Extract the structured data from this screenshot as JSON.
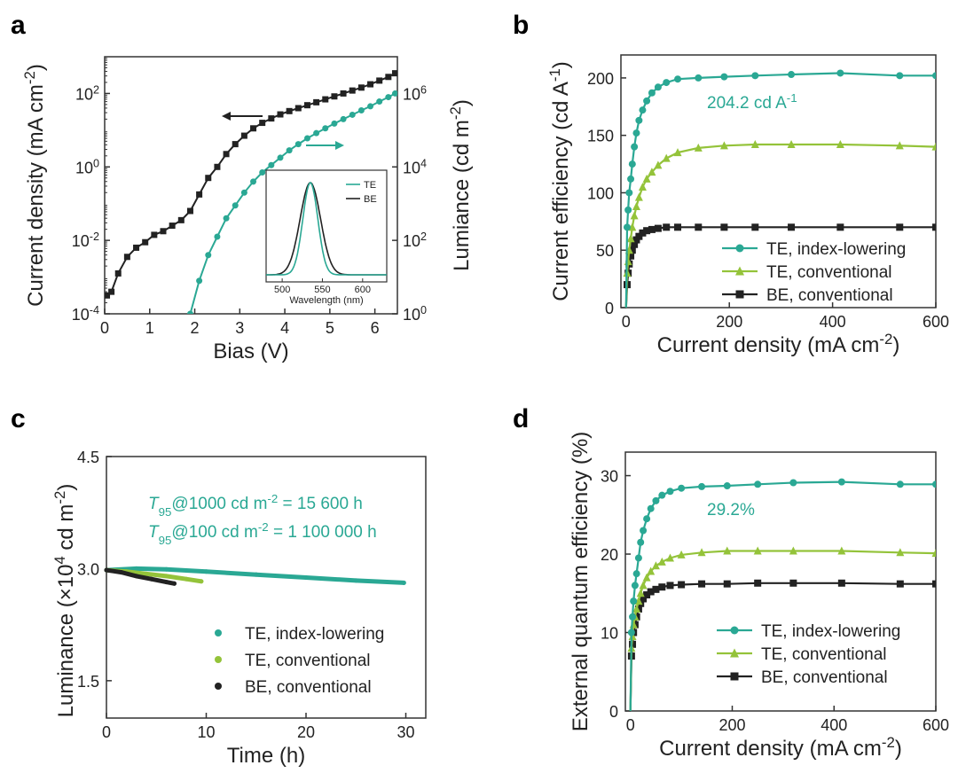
{
  "colors": {
    "teal": "#2aa894",
    "green": "#94c33a",
    "black": "#222222"
  },
  "chart_data": [
    {
      "panel": "a",
      "type": "line",
      "xlabel": "Bias (V)",
      "ylabel": "Current density (mA cm",
      "ylabel_sup": "-2",
      "ylabel_end": ")",
      "y2label": "Lumiance (cd m",
      "y2label_sup": "-2",
      "y2label_end": ")",
      "xlim": [
        0,
        6.5
      ],
      "ylim_log10": [
        -4,
        3
      ],
      "y2lim_log10": [
        0,
        7
      ],
      "x_ticks": [
        "0",
        "1",
        "2",
        "3",
        "4",
        "5",
        "6"
      ],
      "y_ticks": [
        {
          "base": "10",
          "exp": "-4"
        },
        {
          "base": "10",
          "exp": "-2"
        },
        {
          "base": "10",
          "exp": "0"
        },
        {
          "base": "10",
          "exp": "2"
        }
      ],
      "y2_ticks": [
        {
          "base": "10",
          "exp": "0"
        },
        {
          "base": "10",
          "exp": "2"
        },
        {
          "base": "10",
          "exp": "4"
        },
        {
          "base": "10",
          "exp": "6"
        }
      ],
      "series": [
        {
          "name": "Current density",
          "axis": "left",
          "color_key": "black",
          "marker": "square",
          "x": [
            0.05,
            0.15,
            0.3,
            0.5,
            0.7,
            0.9,
            1.1,
            1.3,
            1.5,
            1.7,
            1.9,
            2.1,
            2.3,
            2.5,
            2.7,
            2.9,
            3.1,
            3.3,
            3.5,
            3.7,
            3.9,
            4.1,
            4.3,
            4.5,
            4.7,
            4.9,
            5.1,
            5.3,
            5.5,
            5.7,
            5.9,
            6.1,
            6.3,
            6.45
          ],
          "y_log10": [
            -3.5,
            -3.4,
            -2.9,
            -2.45,
            -2.2,
            -2.05,
            -1.85,
            -1.75,
            -1.6,
            -1.45,
            -1.2,
            -0.75,
            -0.3,
            0.0,
            0.35,
            0.62,
            0.85,
            1.05,
            1.2,
            1.32,
            1.43,
            1.52,
            1.6,
            1.68,
            1.76,
            1.84,
            1.92,
            2.0,
            2.08,
            2.16,
            2.25,
            2.35,
            2.45,
            2.55
          ]
        },
        {
          "name": "Luminance",
          "axis": "right",
          "color_key": "teal",
          "marker": "circle",
          "x": [
            1.9,
            2.1,
            2.3,
            2.5,
            2.7,
            2.9,
            3.1,
            3.3,
            3.5,
            3.7,
            3.9,
            4.1,
            4.3,
            4.5,
            4.7,
            4.9,
            5.1,
            5.3,
            5.5,
            5.7,
            5.9,
            6.1,
            6.3,
            6.45
          ],
          "y_log10": [
            0.0,
            0.9,
            1.6,
            2.1,
            2.6,
            2.95,
            3.3,
            3.6,
            3.85,
            4.05,
            4.25,
            4.45,
            4.62,
            4.78,
            4.92,
            5.05,
            5.18,
            5.3,
            5.42,
            5.54,
            5.65,
            5.78,
            5.9,
            6.0
          ]
        }
      ],
      "inset": {
        "xlabel": "Wavelength (nm)",
        "xlim": [
          480,
          630
        ],
        "x_ticks": [
          "500",
          "550",
          "600"
        ],
        "legend": [
          "TE",
          "BE"
        ],
        "peak_nm": 535,
        "fwhm_te_nm": 22,
        "fwhm_be_nm": 30
      }
    },
    {
      "panel": "b",
      "type": "line",
      "xlabel": "Current density (mA cm",
      "xlabel_sup": "-2",
      "xlabel_end": ")",
      "ylabel": "Current efficiency (cd A",
      "ylabel_sup": "-1",
      "ylabel_end": ")",
      "xlim": [
        -10,
        600
      ],
      "ylim": [
        0,
        220
      ],
      "x_ticks": [
        "0",
        "200",
        "400",
        "600"
      ],
      "y_ticks": [
        "0",
        "50",
        "100",
        "150",
        "200"
      ],
      "annotation": {
        "text": "204.2 cd A",
        "sup": "-1"
      },
      "legend_position": "bottom-right",
      "series": [
        {
          "name": "TE, index-lowering",
          "color_key": "teal",
          "marker": "circle",
          "x": [
            0,
            2,
            4,
            6,
            9,
            12,
            16,
            20,
            25,
            32,
            40,
            50,
            62,
            78,
            100,
            140,
            190,
            250,
            320,
            415,
            530,
            600
          ],
          "y": [
            0,
            70,
            85,
            100,
            112,
            125,
            140,
            152,
            163,
            172,
            180,
            187,
            192,
            196,
            199,
            200,
            201,
            202,
            203,
            204.2,
            202,
            202
          ]
        },
        {
          "name": "TE, conventional",
          "color_key": "green",
          "marker": "triangle",
          "x": [
            0,
            2,
            4,
            6,
            9,
            12,
            16,
            20,
            25,
            32,
            40,
            50,
            62,
            78,
            100,
            140,
            190,
            250,
            320,
            415,
            530,
            600
          ],
          "y": [
            0,
            30,
            40,
            50,
            60,
            70,
            80,
            88,
            96,
            105,
            112,
            118,
            124,
            130,
            135,
            139,
            141,
            142,
            142,
            142,
            141,
            140
          ]
        },
        {
          "name": "BE, conventional",
          "color_key": "black",
          "marker": "square",
          "x": [
            0,
            2,
            4,
            6,
            9,
            12,
            16,
            20,
            25,
            32,
            40,
            50,
            62,
            78,
            100,
            140,
            190,
            250,
            320,
            415,
            530,
            600
          ],
          "y": [
            0,
            20,
            30,
            38,
            45,
            50,
            55,
            59,
            62,
            65,
            67,
            68,
            69,
            70,
            70,
            70,
            70,
            70,
            70,
            70,
            70,
            70
          ]
        }
      ]
    },
    {
      "panel": "c",
      "type": "scatter",
      "xlabel": "Time (h)",
      "ylabel": "Luminance (×10",
      "ylabel_sup": "4",
      "ylabel_mid": " cd m",
      "ylabel_sup2": "-2",
      "ylabel_end": ")",
      "xlim": [
        0,
        32
      ],
      "ylim": [
        1.0,
        4.5
      ],
      "x_ticks": [
        "0",
        "10",
        "20",
        "30"
      ],
      "y_ticks": [
        "1.5",
        "3.0",
        "4.5"
      ],
      "annotations": [
        {
          "T": "T",
          "sub": "95",
          "a": "@1000 cd m",
          "sup": "-2",
          "b": " = 15 600 h"
        },
        {
          "T": "T",
          "sub": "95",
          "a": "@100 cd m",
          "sup": "-2",
          "b": " = 1 100 000 h"
        }
      ],
      "legend_position": "bottom-right",
      "series": [
        {
          "name": "TE, index-lowering",
          "color_key": "teal",
          "x": [
            0,
            3,
            6,
            10,
            15,
            20,
            25,
            29.8
          ],
          "y": [
            2.98,
            3.0,
            2.99,
            2.96,
            2.92,
            2.88,
            2.84,
            2.81
          ]
        },
        {
          "name": "TE, conventional",
          "color_key": "green",
          "x": [
            0,
            2,
            4,
            6,
            8,
            9.5
          ],
          "y": [
            2.98,
            2.96,
            2.93,
            2.9,
            2.86,
            2.83
          ]
        },
        {
          "name": "BE, conventional",
          "color_key": "black",
          "x": [
            0,
            1.5,
            3,
            4.5,
            6,
            6.8
          ],
          "y": [
            2.98,
            2.95,
            2.9,
            2.86,
            2.82,
            2.8
          ]
        }
      ]
    },
    {
      "panel": "d",
      "type": "line",
      "xlabel": "Current density (mA cm",
      "xlabel_sup": "-2",
      "xlabel_end": ")",
      "ylabel": "External quantum efficiency (%)",
      "xlim": [
        -10,
        600
      ],
      "ylim": [
        0,
        33
      ],
      "x_ticks": [
        "0",
        "200",
        "400",
        "600"
      ],
      "y_ticks": [
        "0",
        "10",
        "20",
        "30"
      ],
      "annotation": {
        "text": "29.2%"
      },
      "legend_position": "bottom-right",
      "series": [
        {
          "name": "TE, index-lowering",
          "color_key": "teal",
          "marker": "circle",
          "x": [
            0,
            2,
            4,
            6,
            9,
            12,
            16,
            20,
            25,
            32,
            40,
            50,
            62,
            78,
            100,
            140,
            190,
            250,
            320,
            415,
            530,
            600
          ],
          "y": [
            0,
            10,
            12,
            14,
            16,
            17.5,
            19.5,
            21.5,
            23,
            24.5,
            25.8,
            26.8,
            27.5,
            28,
            28.4,
            28.6,
            28.7,
            28.9,
            29.1,
            29.2,
            28.9,
            28.9
          ]
        },
        {
          "name": "TE, conventional",
          "color_key": "green",
          "marker": "triangle",
          "x": [
            0,
            2,
            4,
            6,
            9,
            12,
            16,
            20,
            25,
            32,
            40,
            50,
            62,
            78,
            100,
            140,
            190,
            250,
            320,
            415,
            530,
            600
          ],
          "y": [
            0,
            8,
            9.5,
            11,
            12,
            13,
            14,
            15,
            16,
            17,
            17.8,
            18.5,
            19,
            19.5,
            19.9,
            20.2,
            20.4,
            20.4,
            20.4,
            20.4,
            20.2,
            20.1
          ]
        },
        {
          "name": "BE, conventional",
          "color_key": "black",
          "marker": "square",
          "x": [
            0,
            2,
            4,
            6,
            9,
            12,
            16,
            20,
            25,
            32,
            40,
            50,
            62,
            78,
            100,
            140,
            190,
            250,
            320,
            415,
            530,
            600
          ],
          "y": [
            0,
            7,
            8.5,
            10,
            11,
            12,
            13,
            13.7,
            14.3,
            14.8,
            15.2,
            15.5,
            15.8,
            16,
            16.1,
            16.2,
            16.2,
            16.3,
            16.3,
            16.3,
            16.2,
            16.2
          ]
        }
      ]
    }
  ]
}
